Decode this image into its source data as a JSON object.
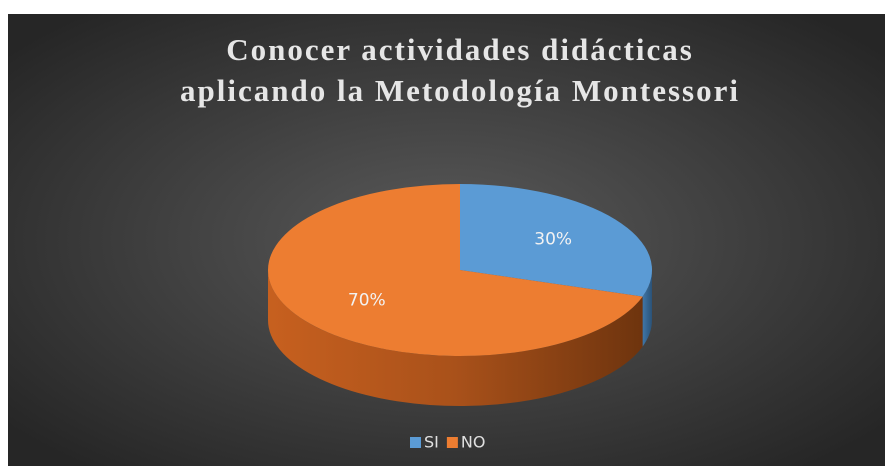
{
  "chart_data": {
    "type": "pie",
    "title": [
      "Conocer actividades didácticas",
      "aplicando la Metodología Montessori"
    ],
    "categories": [
      "SI",
      "NO"
    ],
    "values": [
      30,
      70
    ],
    "value_labels": [
      "30%",
      "70%"
    ],
    "colors": [
      "#5b9bd5",
      "#ed7d31"
    ],
    "legend": "bottom"
  }
}
